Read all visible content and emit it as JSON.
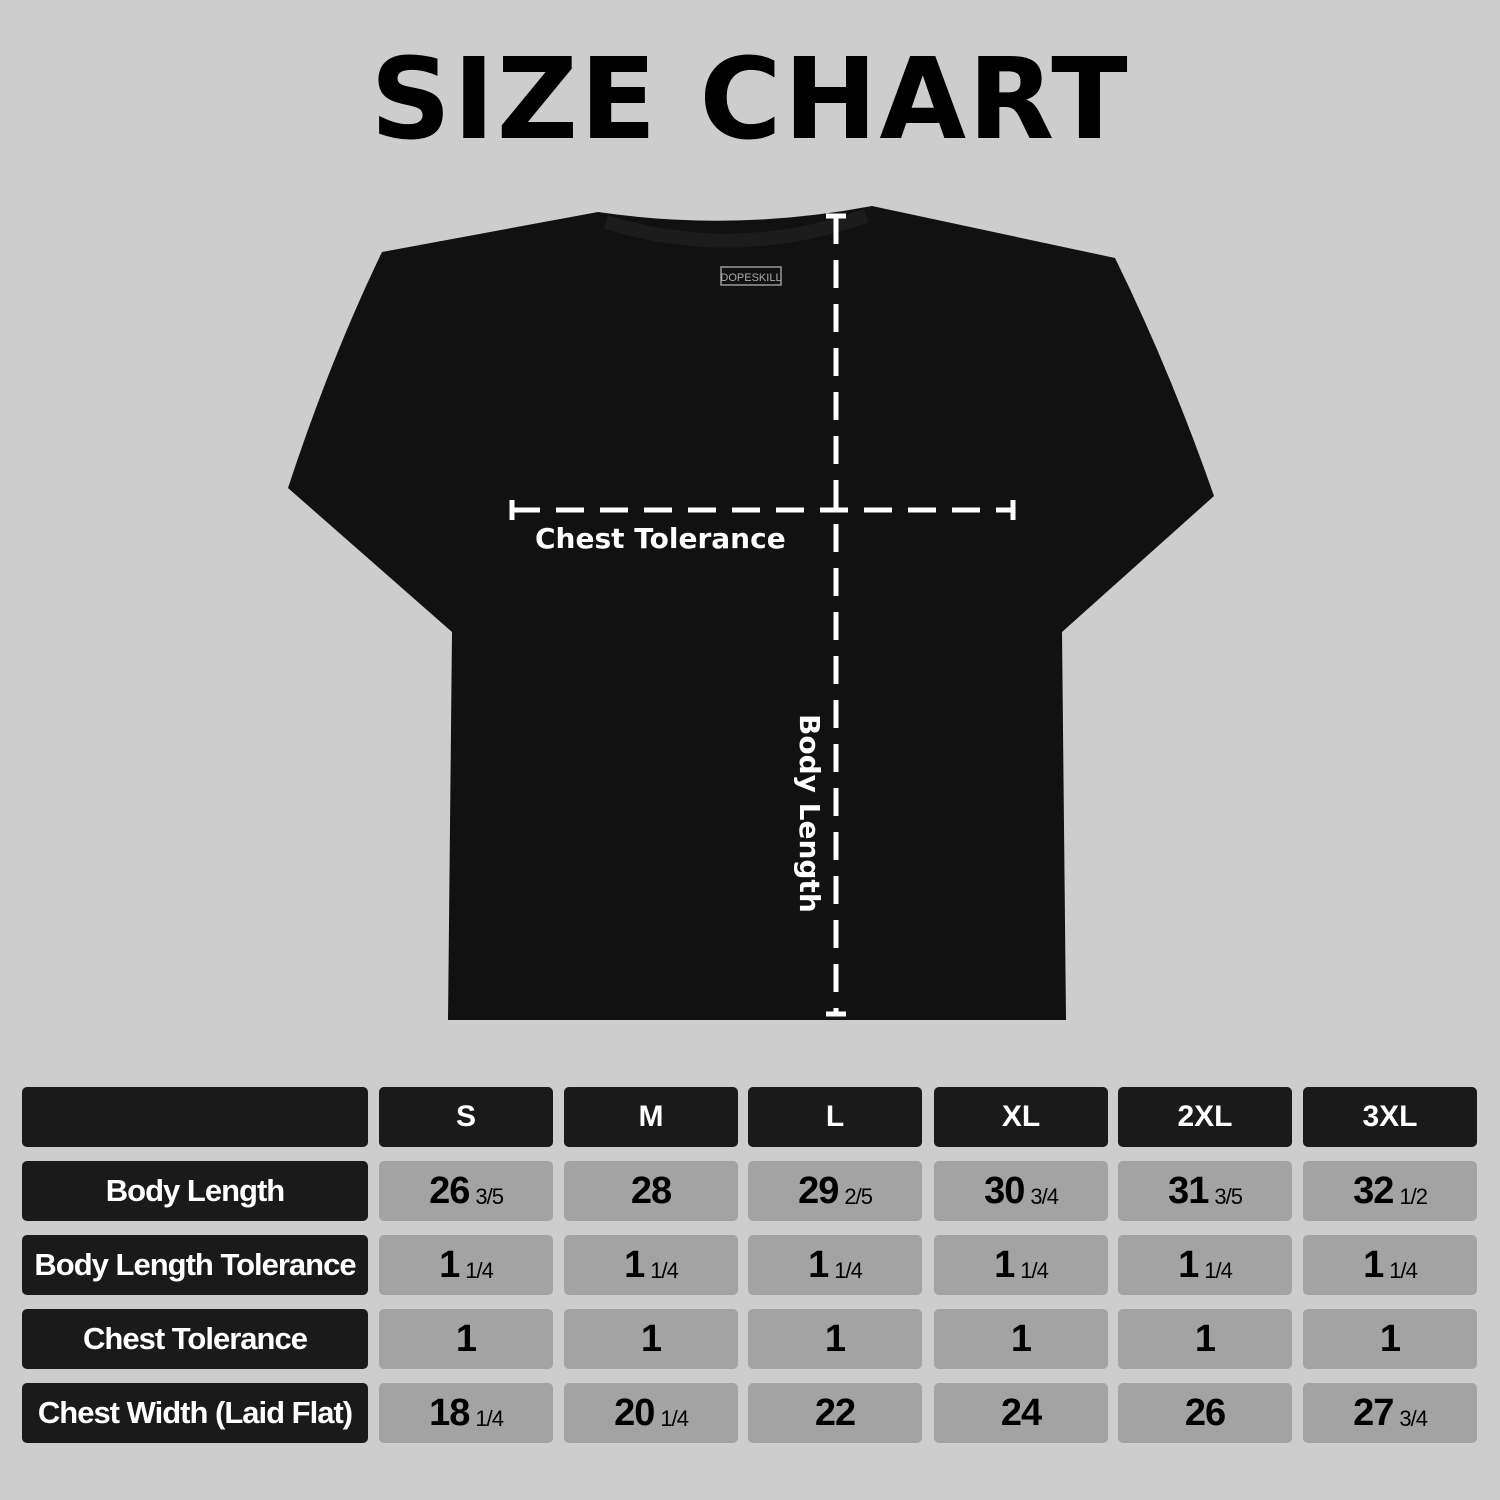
{
  "title": "SIZE CHART",
  "brand_tag": "DOPESKILL",
  "diagram": {
    "chest_label": "Chest Tolerance",
    "length_label": "Body Length",
    "shirt_color": "#111111",
    "line_color": "#ffffff"
  },
  "table": {
    "sizes": [
      "S",
      "M",
      "L",
      "XL",
      "2XL",
      "3XL"
    ],
    "rows": [
      {
        "label": "Body Length",
        "values": [
          [
            "26",
            "3/5"
          ],
          [
            "28",
            ""
          ],
          [
            "29",
            "2/5"
          ],
          [
            "30",
            "3/4"
          ],
          [
            "31",
            "3/5"
          ],
          [
            "32",
            "1/2"
          ]
        ]
      },
      {
        "label": "Body Length Tolerance",
        "values": [
          [
            "1",
            "1/4"
          ],
          [
            "1",
            "1/4"
          ],
          [
            "1",
            "1/4"
          ],
          [
            "1",
            "1/4"
          ],
          [
            "1",
            "1/4"
          ],
          [
            "1",
            "1/4"
          ]
        ]
      },
      {
        "label": "Chest Tolerance",
        "values": [
          [
            "1",
            ""
          ],
          [
            "1",
            ""
          ],
          [
            "1",
            ""
          ],
          [
            "1",
            ""
          ],
          [
            "1",
            ""
          ],
          [
            "1",
            ""
          ]
        ]
      },
      {
        "label": "Chest Width (Laid Flat)",
        "values": [
          [
            "18",
            "1/4"
          ],
          [
            "20",
            "1/4"
          ],
          [
            "22",
            ""
          ],
          [
            "24",
            ""
          ],
          [
            "26",
            ""
          ],
          [
            "27",
            "3/4"
          ]
        ]
      }
    ]
  }
}
